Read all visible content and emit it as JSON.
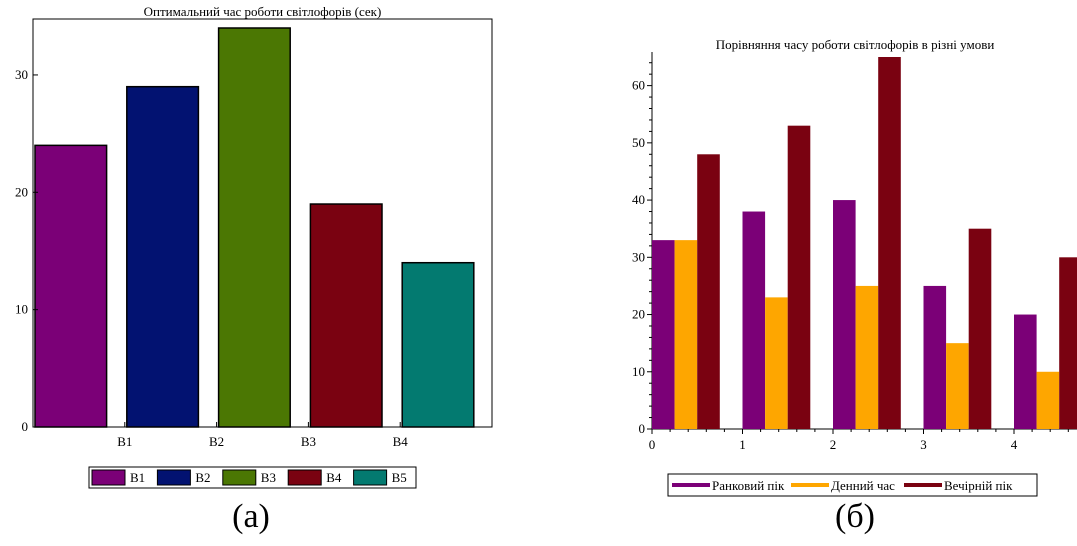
{
  "chart_data": [
    {
      "type": "bar",
      "title": "Оптимальний час роботи світлофорів (сек)",
      "caption": "(а)",
      "categories": [
        "В1",
        "В2",
        "В3",
        "В4",
        "В5"
      ],
      "values": [
        24,
        29,
        34,
        19,
        14
      ],
      "colors": [
        "#7b0077",
        "#021271",
        "#4b7703",
        "#7a0211",
        "#037a70"
      ],
      "x_tick_labels": [
        "В1",
        "В2",
        "В3",
        "В4"
      ],
      "y_ticks": [
        0,
        10,
        20,
        30
      ],
      "ylim": [
        0,
        34
      ],
      "grid": false,
      "legend": {
        "placement": "bottom",
        "entries": [
          "В1",
          "В2",
          "В3",
          "В4",
          "В5"
        ]
      }
    },
    {
      "type": "bar",
      "title": "Порівняння часу роботи світлофорів в різні умови",
      "caption": "(б)",
      "x": [
        0,
        1,
        2,
        3,
        4
      ],
      "x_ticks": [
        0,
        1,
        2,
        3,
        4
      ],
      "y_ticks": [
        0,
        10,
        20,
        30,
        40,
        50,
        60
      ],
      "ylim": [
        0,
        65
      ],
      "grid": false,
      "series": [
        {
          "name": "Ранковий пік",
          "color": "#7b0077",
          "values": [
            33,
            38,
            40,
            25,
            20
          ]
        },
        {
          "name": "Денний час",
          "color": "#fea600",
          "values": [
            33,
            23,
            25,
            15,
            10
          ]
        },
        {
          "name": "Вечірній пік",
          "color": "#7a0211",
          "values": [
            48,
            53,
            65,
            35,
            30
          ]
        }
      ],
      "legend": {
        "placement": "bottom"
      }
    }
  ]
}
